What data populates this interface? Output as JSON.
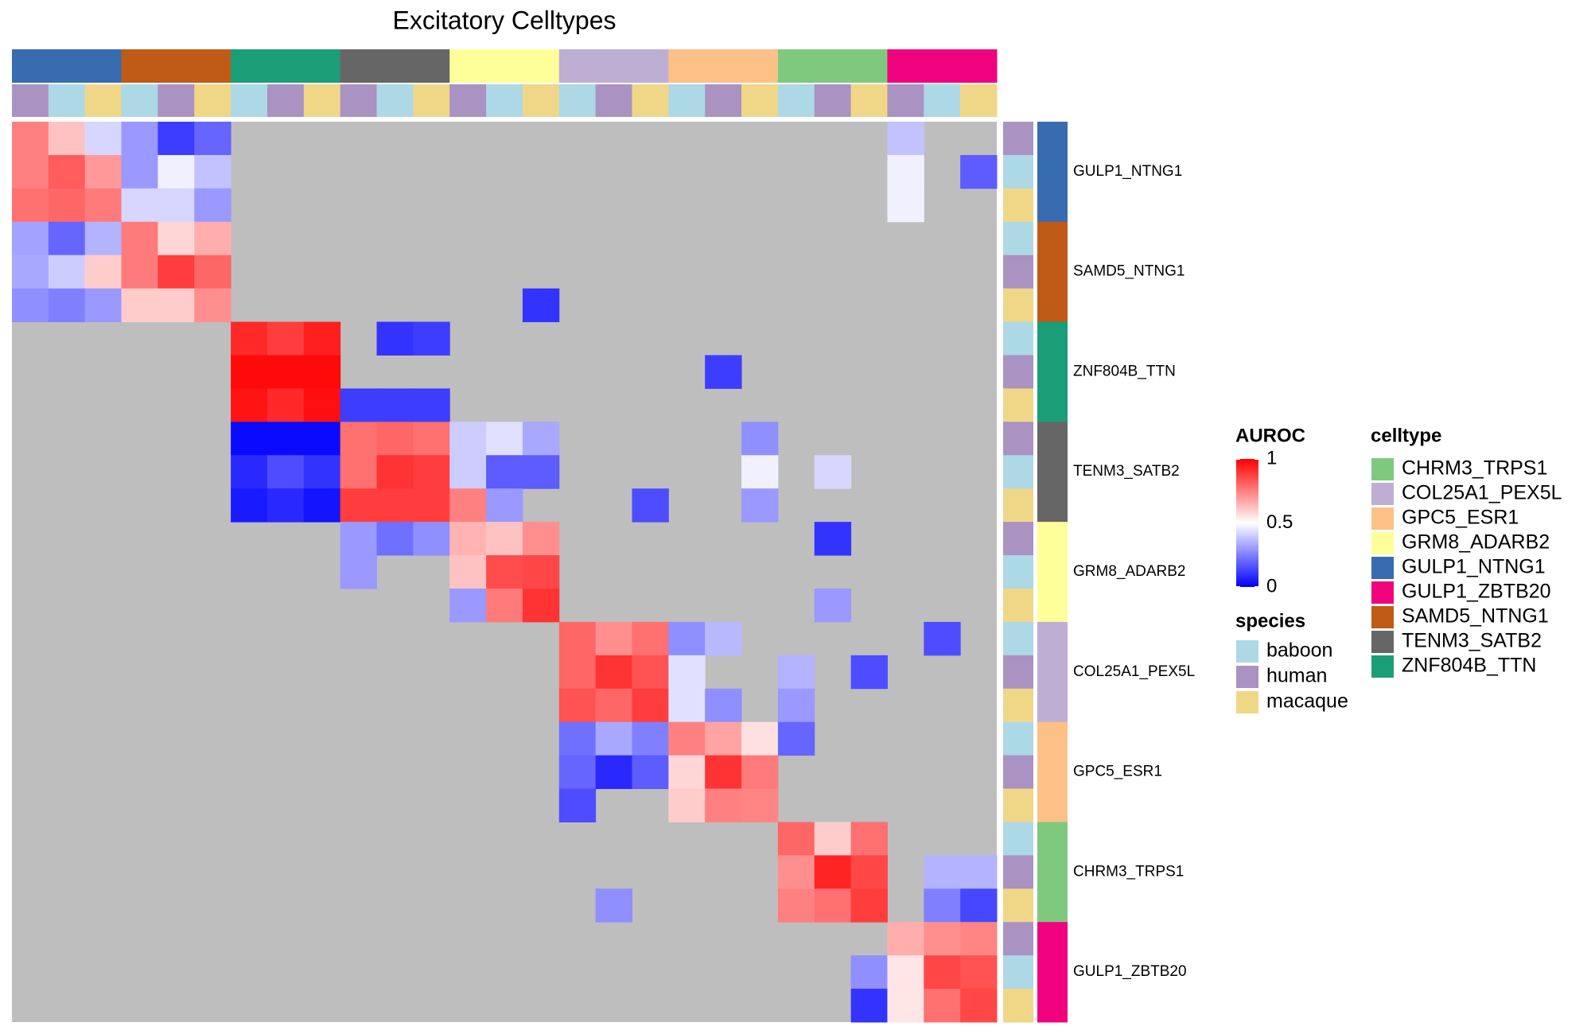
{
  "chart_data": {
    "type": "heatmap",
    "title": "Excitatory Celltypes",
    "groups": [
      "GULP1_NTNG1",
      "SAMD5_NTNG1",
      "ZNF804B_TTN",
      "TENM3_SATB2",
      "GRM8_ADARB2",
      "COL25A1_PEX5L",
      "GPC5_ESR1",
      "CHRM3_TRPS1",
      "GULP1_ZBTB20"
    ],
    "column_species": [
      "human",
      "baboon",
      "macaque",
      "baboon",
      "human",
      "macaque",
      "baboon",
      "human",
      "macaque",
      "human",
      "baboon",
      "macaque",
      "human",
      "baboon",
      "macaque",
      "baboon",
      "human",
      "macaque",
      "baboon",
      "human",
      "macaque",
      "baboon",
      "human",
      "macaque",
      "human",
      "baboon",
      "macaque"
    ],
    "row_species": [
      "human",
      "baboon",
      "macaque",
      "baboon",
      "human",
      "macaque",
      "baboon",
      "human",
      "macaque",
      "human",
      "baboon",
      "macaque",
      "human",
      "baboon",
      "macaque",
      "baboon",
      "human",
      "macaque",
      "baboon",
      "human",
      "macaque",
      "baboon",
      "human",
      "macaque",
      "human",
      "baboon",
      "macaque"
    ],
    "values": [
      [
        0.75,
        0.62,
        0.42,
        0.3,
        0.12,
        0.2,
        null,
        null,
        null,
        null,
        null,
        null,
        null,
        null,
        null,
        null,
        null,
        null,
        null,
        null,
        null,
        null,
        null,
        null,
        0.38,
        null,
        null
      ],
      [
        0.75,
        0.82,
        0.7,
        0.3,
        0.47,
        0.38,
        null,
        null,
        null,
        null,
        null,
        null,
        null,
        null,
        null,
        null,
        null,
        null,
        null,
        null,
        null,
        null,
        null,
        null,
        0.47,
        null,
        0.18
      ],
      [
        0.78,
        0.8,
        0.76,
        0.42,
        0.42,
        0.3,
        null,
        null,
        null,
        null,
        null,
        null,
        null,
        null,
        null,
        null,
        null,
        null,
        null,
        null,
        null,
        null,
        null,
        null,
        0.47,
        null,
        null
      ],
      [
        0.32,
        0.2,
        0.35,
        0.76,
        0.58,
        0.66,
        null,
        null,
        null,
        null,
        null,
        null,
        null,
        null,
        null,
        null,
        null,
        null,
        null,
        null,
        null,
        null,
        null,
        null,
        null,
        null,
        null
      ],
      [
        0.33,
        0.4,
        0.6,
        0.76,
        0.88,
        0.8,
        null,
        null,
        null,
        null,
        null,
        null,
        null,
        null,
        null,
        null,
        null,
        null,
        null,
        null,
        null,
        null,
        null,
        null,
        null,
        null,
        null
      ],
      [
        0.28,
        0.25,
        0.3,
        0.6,
        0.6,
        0.72,
        null,
        null,
        null,
        null,
        null,
        null,
        null,
        null,
        0.1,
        null,
        null,
        null,
        null,
        null,
        null,
        null,
        null,
        null,
        null,
        null,
        null
      ],
      [
        null,
        null,
        null,
        null,
        null,
        null,
        0.92,
        0.88,
        0.94,
        null,
        0.1,
        0.12,
        null,
        null,
        null,
        null,
        null,
        null,
        null,
        null,
        null,
        null,
        null,
        null,
        null,
        null,
        null
      ],
      [
        null,
        null,
        null,
        null,
        null,
        null,
        0.98,
        0.98,
        0.98,
        null,
        null,
        null,
        null,
        null,
        null,
        null,
        null,
        null,
        null,
        0.12,
        null,
        null,
        null,
        null,
        null,
        null,
        null
      ],
      [
        null,
        null,
        null,
        null,
        null,
        null,
        0.96,
        0.92,
        0.97,
        0.12,
        0.12,
        0.12,
        null,
        null,
        null,
        null,
        null,
        null,
        null,
        null,
        null,
        null,
        null,
        null,
        null,
        null,
        null
      ],
      [
        null,
        null,
        null,
        null,
        null,
        null,
        0.02,
        0.02,
        0.02,
        0.78,
        0.8,
        0.78,
        0.4,
        0.44,
        0.33,
        null,
        null,
        null,
        null,
        null,
        0.28,
        null,
        null,
        null,
        null,
        null,
        null
      ],
      [
        null,
        null,
        null,
        null,
        null,
        null,
        0.08,
        0.15,
        0.1,
        0.78,
        0.9,
        0.88,
        0.4,
        0.18,
        0.18,
        null,
        null,
        null,
        null,
        null,
        0.47,
        null,
        0.42,
        null,
        null,
        null,
        null
      ],
      [
        null,
        null,
        null,
        null,
        null,
        null,
        0.05,
        0.08,
        0.04,
        0.88,
        0.88,
        0.88,
        0.75,
        0.3,
        null,
        null,
        null,
        0.15,
        null,
        null,
        0.3,
        null,
        null,
        null,
        null,
        null,
        null
      ],
      [
        null,
        null,
        null,
        null,
        null,
        null,
        null,
        null,
        null,
        0.3,
        0.22,
        0.28,
        0.65,
        0.62,
        0.72,
        null,
        null,
        null,
        null,
        null,
        null,
        null,
        0.1,
        null,
        null,
        null,
        null
      ],
      [
        null,
        null,
        null,
        null,
        null,
        null,
        null,
        null,
        null,
        0.3,
        null,
        null,
        0.62,
        0.85,
        0.86,
        null,
        null,
        null,
        null,
        null,
        null,
        null,
        null,
        null,
        null,
        null,
        null
      ],
      [
        null,
        null,
        null,
        null,
        null,
        null,
        null,
        null,
        null,
        null,
        null,
        null,
        0.3,
        0.76,
        0.9,
        null,
        null,
        null,
        null,
        null,
        null,
        null,
        0.3,
        null,
        null,
        null,
        null
      ],
      [
        null,
        null,
        null,
        null,
        null,
        null,
        null,
        null,
        null,
        null,
        null,
        null,
        null,
        null,
        null,
        0.8,
        0.72,
        0.78,
        0.28,
        0.36,
        null,
        null,
        null,
        null,
        null,
        0.15,
        null
      ],
      [
        null,
        null,
        null,
        null,
        null,
        null,
        null,
        null,
        null,
        null,
        null,
        null,
        null,
        null,
        null,
        0.8,
        0.9,
        0.84,
        0.44,
        null,
        null,
        0.35,
        null,
        0.15,
        null,
        null,
        null
      ],
      [
        null,
        null,
        null,
        null,
        null,
        null,
        null,
        null,
        null,
        null,
        null,
        null,
        null,
        null,
        null,
        0.84,
        0.8,
        0.88,
        0.44,
        0.28,
        null,
        0.3,
        null,
        null,
        null,
        null,
        null
      ],
      [
        null,
        null,
        null,
        null,
        null,
        null,
        null,
        null,
        null,
        null,
        null,
        null,
        null,
        null,
        null,
        0.22,
        0.33,
        0.25,
        0.75,
        0.68,
        0.56,
        0.2,
        null,
        null,
        null,
        null,
        null
      ],
      [
        null,
        null,
        null,
        null,
        null,
        null,
        null,
        null,
        null,
        null,
        null,
        null,
        null,
        null,
        null,
        0.2,
        0.08,
        0.18,
        0.58,
        0.9,
        0.76,
        null,
        null,
        null,
        null,
        null,
        null
      ],
      [
        null,
        null,
        null,
        null,
        null,
        null,
        null,
        null,
        null,
        null,
        null,
        null,
        null,
        null,
        null,
        0.15,
        null,
        null,
        0.6,
        0.75,
        0.74,
        null,
        null,
        null,
        null,
        null,
        null
      ],
      [
        null,
        null,
        null,
        null,
        null,
        null,
        null,
        null,
        null,
        null,
        null,
        null,
        null,
        null,
        null,
        null,
        null,
        null,
        null,
        null,
        null,
        0.8,
        0.6,
        0.78,
        null,
        null,
        null
      ],
      [
        null,
        null,
        null,
        null,
        null,
        null,
        null,
        null,
        null,
        null,
        null,
        null,
        null,
        null,
        null,
        null,
        null,
        null,
        null,
        null,
        null,
        0.72,
        0.93,
        0.86,
        null,
        0.35,
        0.35
      ],
      [
        null,
        null,
        null,
        null,
        null,
        null,
        null,
        null,
        null,
        null,
        null,
        null,
        null,
        null,
        null,
        null,
        0.28,
        null,
        null,
        null,
        null,
        0.75,
        0.78,
        0.88,
        null,
        0.25,
        0.14
      ],
      [
        null,
        null,
        null,
        null,
        null,
        null,
        null,
        null,
        null,
        null,
        null,
        null,
        null,
        null,
        null,
        null,
        null,
        null,
        null,
        null,
        null,
        null,
        null,
        null,
        0.66,
        0.72,
        0.74
      ],
      [
        null,
        null,
        null,
        null,
        null,
        null,
        null,
        null,
        null,
        null,
        null,
        null,
        null,
        null,
        null,
        null,
        null,
        null,
        null,
        null,
        null,
        null,
        null,
        0.28,
        0.55,
        0.86,
        0.84
      ],
      [
        null,
        null,
        null,
        null,
        null,
        null,
        null,
        null,
        null,
        null,
        null,
        null,
        null,
        null,
        null,
        null,
        null,
        null,
        null,
        null,
        null,
        null,
        null,
        0.1,
        0.55,
        0.78,
        0.86
      ]
    ],
    "colorbar": {
      "title": "AUROC",
      "lim": [
        0,
        1
      ],
      "ticks": [
        0,
        0.5,
        1
      ],
      "low": "#0000ff",
      "mid": "#ffffff",
      "high": "#ff0000",
      "na_color": "#bebebe"
    },
    "species_legend": {
      "title": "species",
      "items": [
        {
          "name": "baboon",
          "color": "#add8e6"
        },
        {
          "name": "human",
          "color": "#aa92c2"
        },
        {
          "name": "macaque",
          "color": "#f0d788"
        }
      ]
    },
    "celltype_legend": {
      "title": "celltype",
      "items": [
        {
          "name": "CHRM3_TRPS1",
          "color": "#7fc97f"
        },
        {
          "name": "COL25A1_PEX5L",
          "color": "#beaed4"
        },
        {
          "name": "GPC5_ESR1",
          "color": "#fdc086"
        },
        {
          "name": "GRM8_ADARB2",
          "color": "#ffff99"
        },
        {
          "name": "GULP1_NTNG1",
          "color": "#386cb0"
        },
        {
          "name": "GULP1_ZBTB20",
          "color": "#f0027f"
        },
        {
          "name": "SAMD5_NTNG1",
          "color": "#bf5b17"
        },
        {
          "name": "TENM3_SATB2",
          "color": "#666666"
        },
        {
          "name": "ZNF804B_TTN",
          "color": "#1b9e77"
        }
      ]
    }
  }
}
